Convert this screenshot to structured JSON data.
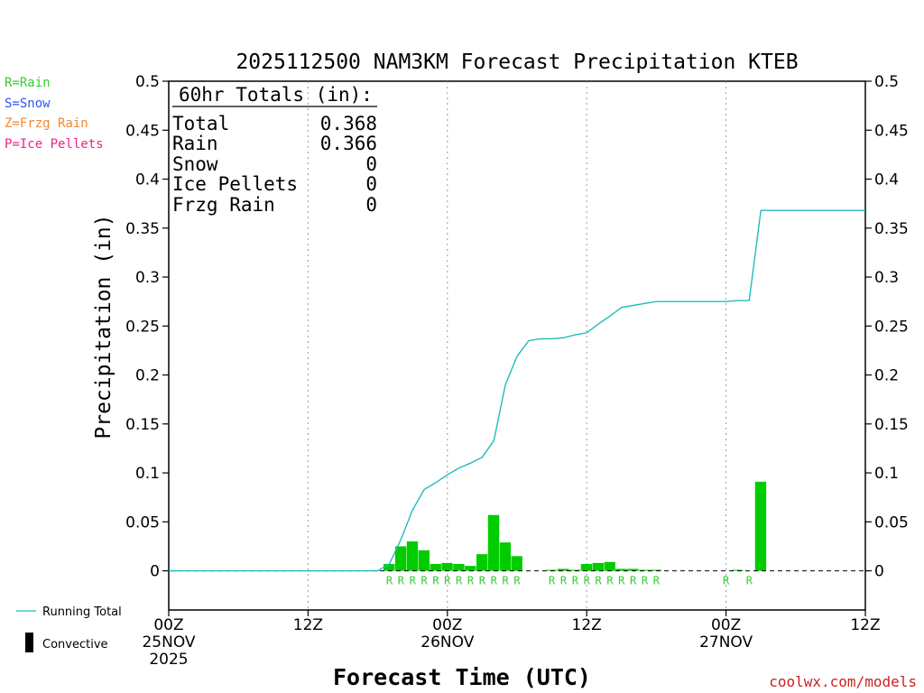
{
  "legend_types": [
    {
      "label": "R=Rain",
      "color": "#33cc33"
    },
    {
      "label": "S=Snow",
      "color": "#3355ee"
    },
    {
      "label": "Z=Frzg Rain",
      "color": "#ee8833"
    },
    {
      "label": "P=Ice Pellets",
      "color": "#ee2288"
    }
  ],
  "totals_box": {
    "header": "60hr Totals (in):",
    "rows": [
      {
        "label": "Total",
        "value": "0.368"
      },
      {
        "label": "Rain",
        "value": "0.366"
      },
      {
        "label": "Snow",
        "value": "0"
      },
      {
        "label": "Ice Pellets",
        "value": "0"
      },
      {
        "label": "Frzg Rain",
        "value": "0"
      }
    ]
  },
  "bottom_legend": {
    "running_total": "Running Total",
    "convective": "Convective"
  },
  "credit": "coolwx.com/models",
  "colors": {
    "bar": "#00cc00",
    "line": "#22bbbb",
    "rain_marker": "#33cc33",
    "credit": "#cc2222"
  },
  "chart_data": {
    "type": "bar",
    "title": "2025112500 NAM3KM Forecast Precipitation KTEB",
    "xlabel": "Forecast Time (UTC)",
    "ylabel": "Precipitation (in)",
    "xlim": [
      0,
      60
    ],
    "ylim": [
      -0.04,
      0.5
    ],
    "yticks": [
      0,
      0.05,
      0.1,
      0.15,
      0.2,
      0.25,
      0.3,
      0.35,
      0.4,
      0.45,
      0.5
    ],
    "ytick_labels": [
      "0",
      "0.05",
      "0.1",
      "0.15",
      "0.2",
      "0.25",
      "0.3",
      "0.35",
      "0.4",
      "0.45",
      "0.5"
    ],
    "xticks": [
      {
        "hour": 0,
        "lines": [
          "00Z",
          "25NOV",
          "2025"
        ]
      },
      {
        "hour": 12,
        "lines": [
          "12Z"
        ]
      },
      {
        "hour": 24,
        "lines": [
          "00Z",
          "26NOV"
        ]
      },
      {
        "hour": 36,
        "lines": [
          "12Z"
        ]
      },
      {
        "hour": 48,
        "lines": [
          "00Z",
          "27NOV"
        ]
      },
      {
        "hour": 60,
        "lines": [
          "12Z"
        ]
      }
    ],
    "grid_x_hours": [
      12,
      24,
      36,
      48
    ],
    "series": [
      {
        "name": "Running Total",
        "type": "line",
        "x": [
          0,
          18,
          19,
          20,
          21,
          22,
          23,
          24,
          25,
          26,
          27,
          28,
          29,
          30,
          31,
          32,
          33,
          34,
          35,
          36,
          37,
          38,
          39,
          40,
          41,
          42,
          43,
          44,
          45,
          46,
          47,
          48,
          49,
          50,
          51,
          60
        ],
        "y": [
          0,
          0,
          0.007,
          0.032,
          0.062,
          0.083,
          0.09,
          0.098,
          0.105,
          0.11,
          0.116,
          0.133,
          0.19,
          0.219,
          0.235,
          0.237,
          0.237,
          0.238,
          0.241,
          0.243,
          0.252,
          0.26,
          0.269,
          0.271,
          0.273,
          0.275,
          0.275,
          0.275,
          0.275,
          0.275,
          0.275,
          0.275,
          0.276,
          0.276,
          0.368,
          0.368
        ]
      },
      {
        "name": "Convective",
        "type": "bar",
        "x": [
          19,
          20,
          21,
          22,
          23,
          24,
          25,
          26,
          27,
          28,
          29,
          30,
          33,
          34,
          35,
          36,
          37,
          38,
          39,
          40,
          41,
          42,
          49,
          51
        ],
        "y": [
          0.007,
          0.025,
          0.03,
          0.021,
          0.007,
          0.008,
          0.007,
          0.005,
          0.017,
          0.057,
          0.029,
          0.015,
          0.001,
          0.002,
          0.001,
          0.007,
          0.008,
          0.009,
          0.002,
          0.002,
          0.001,
          0.001,
          0.001,
          0.091
        ]
      }
    ],
    "ptype_markers": {
      "label": "R",
      "hours": [
        19,
        20,
        21,
        22,
        23,
        24,
        25,
        26,
        27,
        28,
        29,
        30,
        33,
        34,
        35,
        36,
        37,
        38,
        39,
        40,
        41,
        42,
        48,
        50
      ]
    },
    "legend": "bottom-left",
    "grid": "vertical dotted at 12-hour ticks"
  }
}
